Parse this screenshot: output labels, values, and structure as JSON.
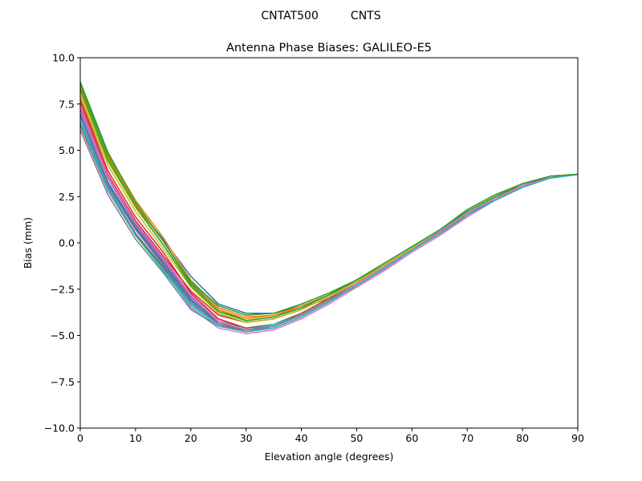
{
  "chart_data": {
    "type": "line",
    "suptitle": "CNTAT500         CNTS",
    "title": "Antenna Phase Biases: GALILEO-E5",
    "xlabel": "Elevation angle (degrees)",
    "ylabel": "Bias (mm)",
    "xlim": [
      0,
      90
    ],
    "ylim": [
      -10,
      10
    ],
    "xticks": [
      "0",
      "10",
      "20",
      "30",
      "40",
      "50",
      "60",
      "70",
      "80",
      "90"
    ],
    "yticks": [
      "10.0",
      "7.5",
      "5.0",
      "2.5",
      "0.0",
      "−2.5",
      "−5.0",
      "−7.5",
      "−10.0"
    ],
    "grid": false,
    "legend": "none",
    "x": [
      0,
      5,
      10,
      15,
      20,
      25,
      30,
      35,
      40,
      45,
      50,
      55,
      60,
      65,
      70,
      75,
      80,
      85,
      90
    ],
    "series": [
      {
        "color": "#1f77b4",
        "values": [
          8.5,
          4.4,
          2.0,
          0.2,
          -1.8,
          -3.3,
          -3.8,
          -3.8,
          -3.4,
          -2.8,
          -2.1,
          -1.3,
          -0.4,
          0.5,
          1.6,
          2.4,
          3.1,
          3.6,
          3.7
        ]
      },
      {
        "color": "#ff7f0e",
        "values": [
          8.4,
          4.8,
          2.3,
          0.3,
          -2.0,
          -3.5,
          -4.0,
          -3.9,
          -3.5,
          -3.0,
          -2.4,
          -1.5,
          -0.5,
          0.4,
          1.5,
          2.3,
          3.1,
          3.5,
          3.7
        ]
      },
      {
        "color": "#2ca02c",
        "values": [
          8.6,
          4.7,
          2.1,
          0.1,
          -2.2,
          -3.6,
          -4.2,
          -4.0,
          -3.5,
          -2.8,
          -2.0,
          -1.1,
          -0.2,
          0.7,
          1.7,
          2.5,
          3.2,
          3.6,
          3.7
        ]
      },
      {
        "color": "#d62728",
        "values": [
          7.8,
          3.9,
          1.4,
          -0.5,
          -2.7,
          -4.1,
          -4.6,
          -4.4,
          -3.8,
          -3.0,
          -2.2,
          -1.3,
          -0.3,
          0.6,
          1.6,
          2.4,
          3.1,
          3.5,
          3.7
        ]
      },
      {
        "color": "#9467bd",
        "values": [
          7.0,
          3.3,
          0.9,
          -1.0,
          -3.0,
          -4.4,
          -4.8,
          -4.5,
          -3.9,
          -3.1,
          -2.2,
          -1.3,
          -0.3,
          0.6,
          1.6,
          2.4,
          3.1,
          3.5,
          3.7
        ]
      },
      {
        "color": "#8c564b",
        "values": [
          7.3,
          3.6,
          1.1,
          -0.8,
          -2.8,
          -4.2,
          -4.6,
          -4.4,
          -3.8,
          -3.0,
          -2.2,
          -1.3,
          -0.3,
          0.6,
          1.6,
          2.4,
          3.1,
          3.5,
          3.7
        ]
      },
      {
        "color": "#e377c2",
        "values": [
          6.3,
          2.8,
          0.4,
          -1.4,
          -3.5,
          -4.6,
          -4.9,
          -4.7,
          -4.1,
          -3.3,
          -2.4,
          -1.5,
          -0.5,
          0.4,
          1.4,
          2.3,
          3.0,
          3.5,
          3.7
        ]
      },
      {
        "color": "#7f7f7f",
        "values": [
          6.1,
          2.6,
          0.2,
          -1.6,
          -3.6,
          -4.5,
          -4.8,
          -4.6,
          -4.0,
          -3.2,
          -2.3,
          -1.4,
          -0.4,
          0.5,
          1.5,
          2.3,
          3.0,
          3.5,
          3.7
        ]
      },
      {
        "color": "#bcbd22",
        "values": [
          8.0,
          4.4,
          1.9,
          -0.1,
          -2.3,
          -3.8,
          -4.3,
          -4.1,
          -3.6,
          -2.9,
          -2.1,
          -1.2,
          -0.3,
          0.7,
          1.7,
          2.5,
          3.2,
          3.6,
          3.7
        ]
      },
      {
        "color": "#17becf",
        "values": [
          6.6,
          3.0,
          0.5,
          -1.4,
          -3.3,
          -4.4,
          -4.7,
          -4.4,
          -3.9,
          -3.1,
          -2.3,
          -1.4,
          -0.4,
          0.5,
          1.5,
          2.4,
          3.1,
          3.5,
          3.7
        ]
      },
      {
        "color": "#1f77b4",
        "values": [
          6.9,
          3.2,
          0.8,
          -1.1,
          -3.1,
          -4.3,
          -4.7,
          -4.5,
          -3.9,
          -3.1,
          -2.3,
          -1.4,
          -0.4,
          0.5,
          1.5,
          2.4,
          3.1,
          3.5,
          3.7
        ]
      },
      {
        "color": "#ff7f0e",
        "values": [
          8.2,
          4.6,
          2.1,
          0.1,
          -2.1,
          -3.6,
          -4.1,
          -3.9,
          -3.4,
          -2.8,
          -2.1,
          -1.3,
          -0.4,
          0.6,
          1.6,
          2.4,
          3.1,
          3.6,
          3.7
        ]
      },
      {
        "color": "#2ca02c",
        "values": [
          8.7,
          4.9,
          2.2,
          0.1,
          -2.1,
          -3.4,
          -3.9,
          -3.8,
          -3.3,
          -2.7,
          -2.0,
          -1.2,
          -0.3,
          0.7,
          1.8,
          2.6,
          3.2,
          3.6,
          3.7
        ]
      },
      {
        "color": "#d62728",
        "values": [
          7.6,
          3.7,
          1.2,
          -0.7,
          -2.6,
          -3.9,
          -4.3,
          -4.1,
          -3.6,
          -2.9,
          -2.1,
          -1.2,
          -0.3,
          0.7,
          1.7,
          2.5,
          3.1,
          3.6,
          3.7
        ]
      },
      {
        "color": "#9467bd",
        "values": [
          7.2,
          3.5,
          1.0,
          -0.9,
          -2.9,
          -4.3,
          -4.7,
          -4.5,
          -3.9,
          -3.1,
          -2.3,
          -1.4,
          -0.4,
          0.6,
          1.6,
          2.4,
          3.1,
          3.5,
          3.7
        ]
      },
      {
        "color": "#8c564b",
        "values": [
          6.4,
          2.9,
          0.5,
          -1.3,
          -3.2,
          -4.4,
          -4.8,
          -4.6,
          -4.0,
          -3.2,
          -2.3,
          -1.4,
          -0.4,
          0.5,
          1.5,
          2.3,
          3.0,
          3.5,
          3.7
        ]
      },
      {
        "color": "#e377c2",
        "values": [
          7.4,
          3.6,
          1.1,
          -0.8,
          -2.8,
          -4.2,
          -4.7,
          -4.5,
          -3.9,
          -3.1,
          -2.2,
          -1.3,
          -0.3,
          0.6,
          1.6,
          2.4,
          3.1,
          3.5,
          3.7
        ]
      },
      {
        "color": "#7f7f7f",
        "values": [
          6.8,
          3.1,
          0.7,
          -1.2,
          -3.2,
          -4.4,
          -4.7,
          -4.5,
          -3.9,
          -3.1,
          -2.3,
          -1.4,
          -0.4,
          0.5,
          1.5,
          2.3,
          3.0,
          3.5,
          3.7
        ]
      },
      {
        "color": "#bcbd22",
        "values": [
          7.9,
          4.2,
          1.7,
          -0.3,
          -2.4,
          -3.8,
          -4.3,
          -4.1,
          -3.6,
          -2.9,
          -2.1,
          -1.2,
          -0.3,
          0.7,
          1.7,
          2.5,
          3.2,
          3.6,
          3.7
        ]
      },
      {
        "color": "#17becf",
        "values": [
          6.5,
          2.9,
          0.4,
          -1.5,
          -3.4,
          -4.5,
          -4.8,
          -4.6,
          -4.0,
          -3.2,
          -2.3,
          -1.4,
          -0.4,
          0.5,
          1.5,
          2.3,
          3.0,
          3.5,
          3.7
        ]
      },
      {
        "color": "#2ca02c",
        "values": [
          8.3,
          4.5,
          2.0,
          -0.1,
          -2.3,
          -3.7,
          -4.2,
          -4.0,
          -3.5,
          -2.8,
          -2.0,
          -1.1,
          -0.2,
          0.7,
          1.7,
          2.5,
          3.2,
          3.6,
          3.7
        ]
      }
    ]
  }
}
